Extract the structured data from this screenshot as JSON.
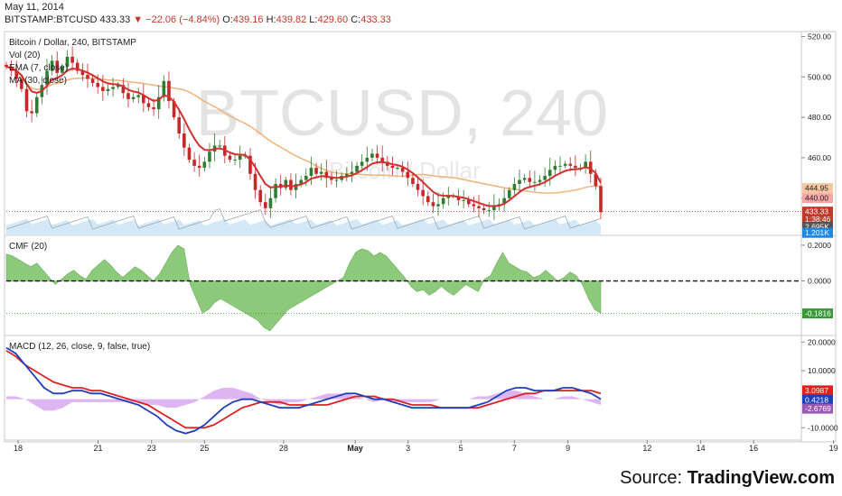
{
  "header": {
    "date": "May 11, 2014",
    "symbol": "BITSTAMP:BTCUSD",
    "last": "433.33",
    "change": "−22.06 (−4.84%)",
    "open_label": "O:",
    "open": "439.16",
    "high_label": "H:",
    "high": "439.82",
    "low_label": "L:",
    "low": "429.60",
    "close_label": "C:",
    "close": "433.33"
  },
  "watermark": {
    "main": "BTCUSD, 240",
    "sub": "Bitcoin / Dollar"
  },
  "source": {
    "prefix": "Source: ",
    "brand": "TradingView.com"
  },
  "colors": {
    "up": "#2e7d32",
    "down": "#c62828",
    "ema": "#d32f2f",
    "ma": "#f0b27a",
    "cmf": "#8cc97a",
    "macd": "#1f3fbf",
    "signal": "#e02020",
    "hist": "#d7a8ee",
    "volume": "#cde6f5",
    "price_badge": "#c0392b"
  },
  "chart_data": [
    {
      "type": "candlestick",
      "legend": [
        "Bitcoin / Dollar, 240, BITSTAMP",
        "Vol (20)",
        "EMA (7, close)",
        "MA (30, close)"
      ],
      "y_ticks": [
        "520.00",
        "500.00",
        "480.00",
        "460.00",
        "440.00"
      ],
      "ylim": [
        422,
        522
      ],
      "badges": [
        {
          "label": "444.95",
          "value": 444.95,
          "color": "#f5c7a0",
          "text_color": "#222"
        },
        {
          "label": "440.00",
          "value": 440.0,
          "color": "#f7a6a6",
          "text_color": "#222"
        },
        {
          "label": "433.33",
          "value": 433.33,
          "color": "#c0392b",
          "text_color": "#ffffff"
        },
        {
          "label": "1:38:46",
          "value": 429.5,
          "color": "#c0392b",
          "text_color": "#ffffff"
        },
        {
          "label": "2.695K",
          "value": 425.8,
          "color": "#555555",
          "text_color": "#ffffff"
        },
        {
          "label": "1.201K",
          "value": 422.8,
          "color": "#1e88e5",
          "text_color": "#ffffff"
        }
      ],
      "current_price": 433.33,
      "closes": [
        505,
        503,
        499,
        494,
        483,
        482,
        490,
        496,
        503,
        508,
        502,
        505,
        510,
        507,
        503,
        501,
        499,
        497,
        495,
        493,
        494,
        495,
        496,
        492,
        489,
        490,
        491,
        487,
        485,
        484,
        490,
        498,
        488,
        480,
        472,
        465,
        459,
        456,
        455,
        458,
        463,
        466,
        466,
        461,
        459,
        459,
        461,
        461,
        452,
        444,
        438,
        435,
        440,
        447,
        445,
        449,
        444,
        447,
        449,
        451,
        455,
        452,
        453,
        450,
        449,
        449,
        451,
        452,
        453,
        456,
        458,
        460,
        462,
        460,
        458,
        456,
        455,
        455,
        453,
        450,
        447,
        444,
        441,
        438,
        436,
        437,
        440,
        441,
        441,
        439,
        439,
        437,
        436,
        435,
        434,
        434,
        436,
        437,
        440,
        444,
        447,
        449,
        450,
        448,
        448,
        449,
        451,
        454,
        456,
        456,
        457,
        456,
        455,
        455,
        458,
        452,
        446,
        433
      ]
    },
    {
      "type": "area",
      "legend": [
        "CMF (20)"
      ],
      "y_ticks": [
        "0.2000",
        "0.0000"
      ],
      "ylim": [
        -0.3,
        0.25
      ],
      "current_label": "-0.1816",
      "current_value": -0.1816,
      "values": [
        0.15,
        0.14,
        0.12,
        0.1,
        0.08,
        0.1,
        0.06,
        0.02,
        -0.02,
        0.01,
        0.04,
        0.06,
        0.03,
        0.01,
        0.06,
        0.09,
        0.12,
        0.09,
        0.05,
        0.02,
        0.05,
        0.08,
        0.06,
        0.03,
        0.0,
        0.04,
        0.1,
        0.16,
        0.2,
        0.18,
        -0.02,
        -0.1,
        -0.18,
        -0.16,
        -0.12,
        -0.1,
        -0.12,
        -0.14,
        -0.16,
        -0.18,
        -0.2,
        -0.22,
        -0.26,
        -0.28,
        -0.24,
        -0.2,
        -0.16,
        -0.14,
        -0.12,
        -0.1,
        -0.08,
        -0.06,
        -0.04,
        -0.02,
        0.0,
        0.02,
        0.1,
        0.16,
        0.18,
        0.17,
        0.14,
        0.16,
        0.14,
        0.1,
        0.06,
        0.02,
        -0.03,
        -0.06,
        -0.05,
        -0.08,
        -0.06,
        -0.03,
        -0.06,
        -0.08,
        -0.05,
        -0.02,
        -0.04,
        -0.06,
        0.01,
        0.03,
        0.1,
        0.16,
        0.1,
        0.08,
        0.06,
        0.05,
        0.02,
        0.03,
        0.06,
        0.03,
        0.0,
        0.02,
        0.05,
        0.03,
        -0.02,
        -0.1,
        -0.16,
        -0.18
      ]
    },
    {
      "type": "line",
      "legend": [
        "MACD (12, 26, close, 9, false, true)"
      ],
      "y_ticks": [
        "20.0000",
        "10.0000",
        "-10.0000"
      ],
      "ylim": [
        -14,
        22
      ],
      "value_labels": [
        {
          "label": "3.0987",
          "value": 3.0987,
          "color": "#e02020"
        },
        {
          "label": "0.4218",
          "value": 0.4218,
          "color": "#1f3fbf"
        },
        {
          "label": "-2.6769",
          "value": -2.6769,
          "color": "#9b59b6"
        }
      ],
      "series": [
        {
          "key": "macd",
          "values": [
            18,
            16,
            12,
            8,
            4,
            2,
            2,
            3,
            3,
            2,
            2,
            1,
            0,
            -1,
            -2,
            -4,
            -6,
            -9,
            -11,
            -12,
            -11,
            -9,
            -6,
            -3,
            -1,
            0,
            0,
            -1,
            -2,
            -3,
            -3,
            -3,
            -2,
            -1,
            0,
            1,
            2,
            2,
            1,
            0,
            0,
            -1,
            -2,
            -3,
            -3,
            -3,
            -3,
            -3,
            -3,
            -3,
            -2,
            -1,
            1,
            3,
            4,
            4,
            3,
            3,
            3,
            4,
            4,
            3,
            2,
            0
          ]
        },
        {
          "key": "signal",
          "values": [
            17,
            15,
            12,
            10,
            8,
            6,
            5,
            4,
            4,
            3,
            3,
            2,
            1,
            0,
            -1,
            -2,
            -4,
            -6,
            -8,
            -10,
            -10,
            -10,
            -9,
            -7,
            -5,
            -3,
            -2,
            -1,
            -1,
            -1,
            -2,
            -2,
            -2,
            -2,
            -2,
            -1,
            0,
            1,
            1,
            1,
            0,
            0,
            -1,
            -2,
            -2,
            -2,
            -3,
            -3,
            -3,
            -3,
            -3,
            -2,
            -1,
            0,
            1,
            2,
            2,
            3,
            3,
            3,
            3,
            3,
            3,
            2
          ]
        },
        {
          "key": "hist",
          "values": [
            1,
            1,
            0,
            -2,
            -4,
            -4,
            -3,
            -1,
            -1,
            -1,
            -1,
            -1,
            -1,
            -1,
            -1,
            -2,
            -2,
            -3,
            -3,
            -2,
            -1,
            1,
            3,
            4,
            4,
            3,
            2,
            0,
            -1,
            -2,
            -1,
            -1,
            0,
            1,
            2,
            2,
            2,
            1,
            0,
            -1,
            0,
            -1,
            -1,
            -1,
            -1,
            -1,
            0,
            0,
            0,
            0,
            1,
            1,
            2,
            3,
            3,
            2,
            1,
            0,
            0,
            1,
            1,
            0,
            -1,
            -2
          ]
        }
      ]
    }
  ],
  "x_axis": {
    "labels": [
      {
        "text": "18",
        "pos": 0.0
      },
      {
        "text": "21",
        "pos": 0.115
      },
      {
        "text": "23",
        "pos": 0.192
      },
      {
        "text": "25",
        "pos": 0.268
      },
      {
        "text": "28",
        "pos": 0.382
      },
      {
        "text": "May",
        "pos": 0.485,
        "bold": true
      },
      {
        "text": "3",
        "pos": 0.561
      },
      {
        "text": "5",
        "pos": 0.637
      },
      {
        "text": "7",
        "pos": 0.714
      },
      {
        "text": "9",
        "pos": 0.791
      },
      {
        "text": "12",
        "pos": 0.905
      },
      {
        "text": "14",
        "pos": 0.982
      },
      {
        "text": "16",
        "pos": 1.058
      },
      {
        "text": "19",
        "pos": 1.173
      }
    ]
  }
}
